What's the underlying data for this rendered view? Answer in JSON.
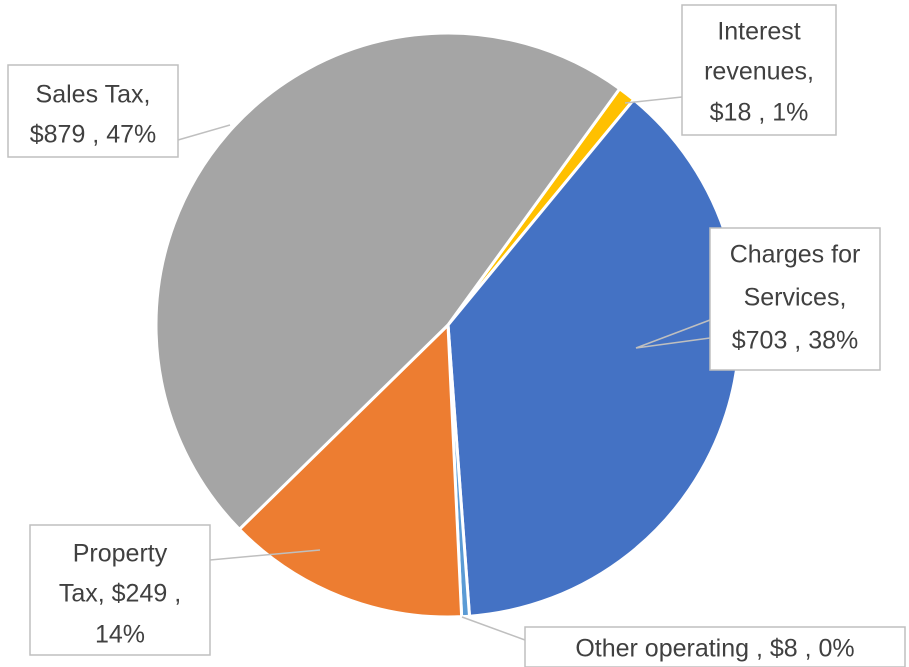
{
  "chart_data": {
    "type": "pie",
    "values": [
      18,
      703,
      8,
      249,
      879
    ],
    "value_labels": [
      [
        "Interest",
        "revenues,",
        "$18 , 1%"
      ],
      [
        "Charges for",
        "Services,",
        "$703 , 38%"
      ],
      [
        "Other operating , $8 , 0%"
      ],
      [
        "Property",
        "Tax, $249 ,",
        "14%"
      ],
      [
        "Sales Tax,",
        "$879 , 47%"
      ]
    ],
    "colors": [
      "#FFC000",
      "#4472C4",
      "#5B9BD5",
      "#ED7D31",
      "#A5A5A5"
    ],
    "start_angle": 36
  }
}
